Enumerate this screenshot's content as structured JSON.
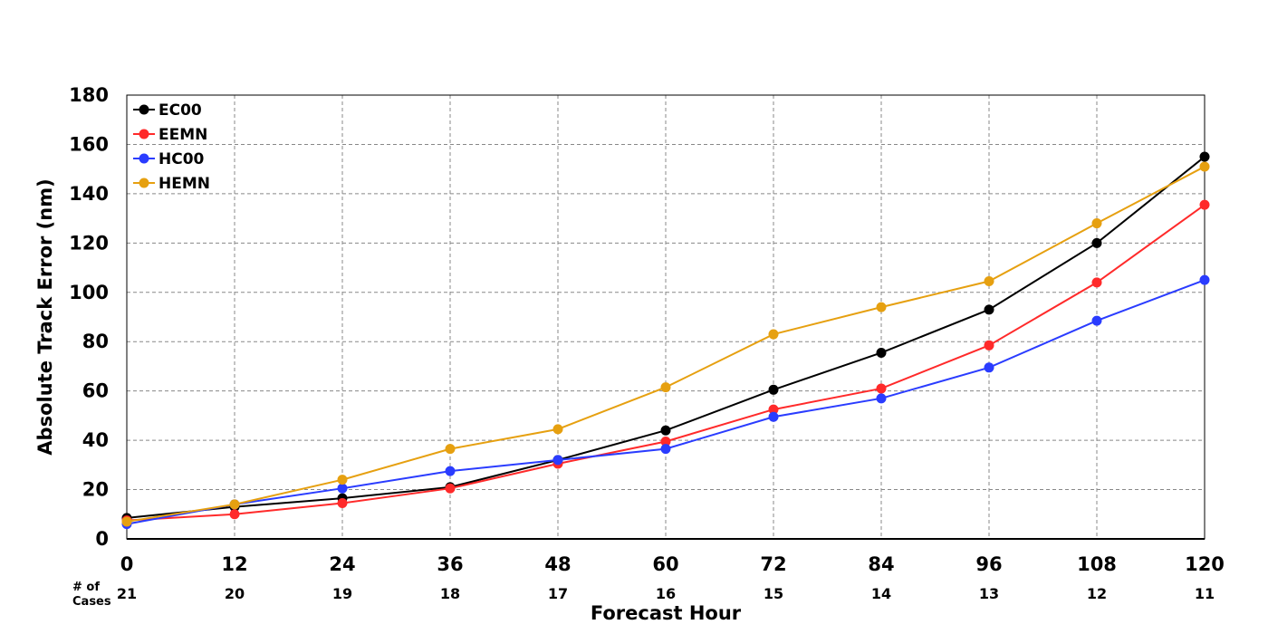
{
  "chart_data": {
    "type": "line",
    "xlabel": "Forecast Hour",
    "ylabel": "Absolute Track Error (nm)",
    "x": [
      0,
      12,
      24,
      36,
      48,
      60,
      72,
      84,
      96,
      108,
      120
    ],
    "xlim": [
      0,
      120
    ],
    "ylim": [
      0,
      180
    ],
    "y_ticks": [
      0,
      20,
      40,
      60,
      80,
      100,
      120,
      140,
      160,
      180
    ],
    "grid": true,
    "legend_position": "top-left",
    "cases_label": "# of Cases",
    "cases": [
      21,
      20,
      19,
      18,
      17,
      16,
      15,
      14,
      13,
      12,
      11
    ],
    "series": [
      {
        "name": "EC00",
        "color": "#000000",
        "values": [
          8.5,
          13,
          16.5,
          21,
          32,
          44,
          60.5,
          75.5,
          93,
          120,
          155
        ]
      },
      {
        "name": "EEMN",
        "color": "#ff2a2a",
        "values": [
          7.5,
          10,
          14.5,
          20.5,
          30.5,
          39.5,
          52.5,
          61,
          78.5,
          104,
          135.5
        ]
      },
      {
        "name": "HC00",
        "color": "#2a3cff",
        "values": [
          6,
          14,
          20.5,
          27.5,
          32,
          36.5,
          49.5,
          57,
          69.5,
          88.5,
          105
        ]
      },
      {
        "name": "HEMN",
        "color": "#e6a010",
        "values": [
          7,
          14,
          24,
          36.5,
          44.5,
          61.5,
          83,
          94,
          104.5,
          128,
          151
        ]
      }
    ]
  }
}
